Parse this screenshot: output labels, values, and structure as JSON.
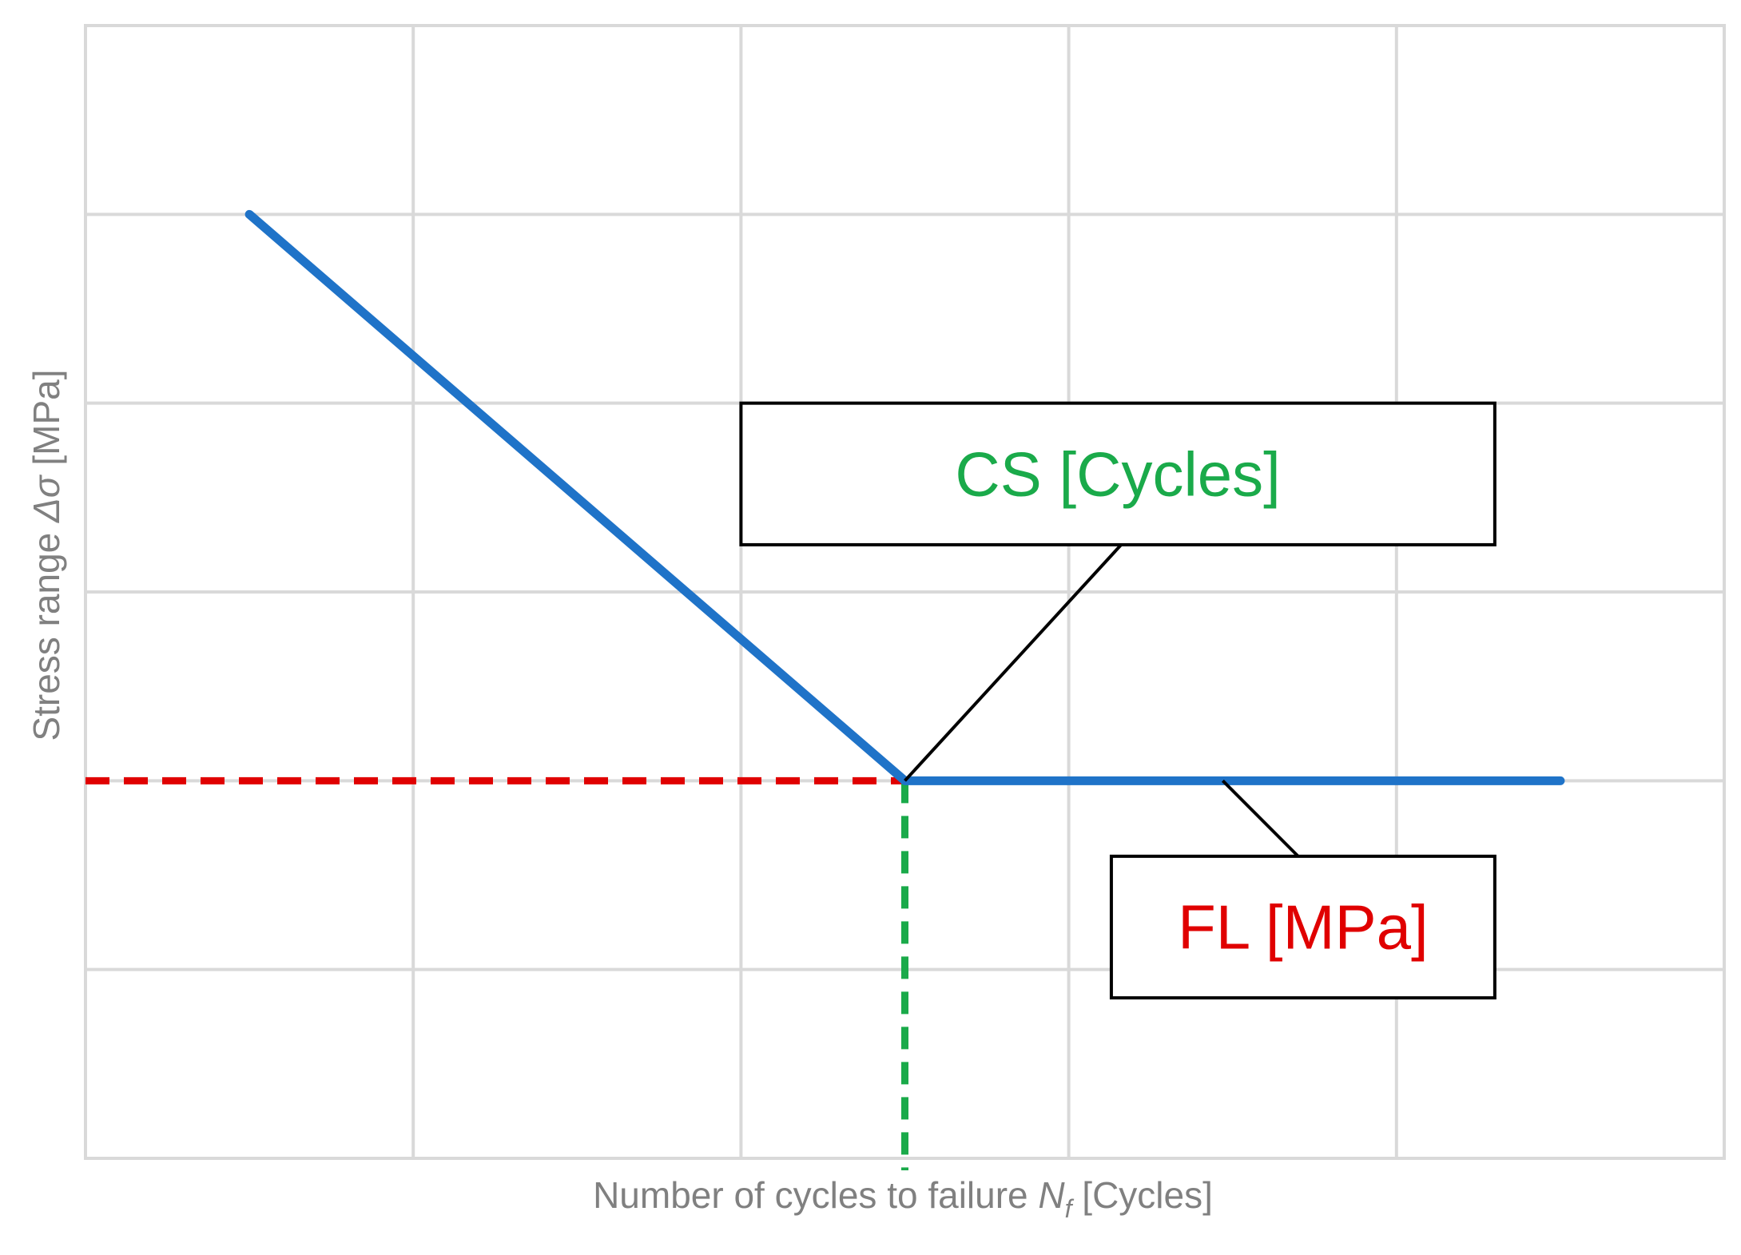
{
  "chart_data": {
    "type": "line",
    "title": "",
    "xlabel_main": "Number of cycles to failure ",
    "xlabel_symbol": "N",
    "xlabel_subscript": "f",
    "xlabel_unit": " [Cycles]",
    "ylabel_main": "Stress range ",
    "ylabel_symbol": "Δσ",
    "ylabel_unit": " [MPa]",
    "xlim": [
      0,
      5
    ],
    "ylim": [
      0,
      6
    ],
    "x_gridlines": [
      1,
      2,
      3,
      4
    ],
    "y_gridlines": [
      1,
      2,
      3,
      4,
      5
    ],
    "grid": true,
    "series": [
      {
        "points": [
          [
            0.5,
            5
          ],
          [
            2.5,
            2
          ],
          [
            4.5,
            2
          ]
        ],
        "color": "#1f73c8"
      }
    ],
    "reference_lines": [
      {
        "orientation": "horizontal",
        "y": 2,
        "x_from": 0,
        "x_to": 2.5,
        "color": "#e00000",
        "style": "dashed"
      },
      {
        "orientation": "vertical",
        "x": 2.5,
        "y_from": 0,
        "y_to": 2,
        "color": "#1aaa4a",
        "style": "dashed"
      }
    ],
    "annotations": [
      {
        "text": "CS [Cycles]",
        "color": "#1aaa4a",
        "box_x": [
          2.0,
          4.3
        ],
        "box_y": [
          3.25,
          4.0
        ],
        "anchor": [
          2.5,
          2.0
        ],
        "callout_from": [
          3.16,
          3.25
        ]
      },
      {
        "text": "FL [MPa]",
        "color": "#e00000",
        "box_x": [
          3.13,
          4.3
        ],
        "box_y": [
          0.85,
          1.6
        ],
        "anchor": [
          3.47,
          2.0
        ],
        "callout_from": [
          3.7,
          1.6
        ]
      }
    ]
  }
}
